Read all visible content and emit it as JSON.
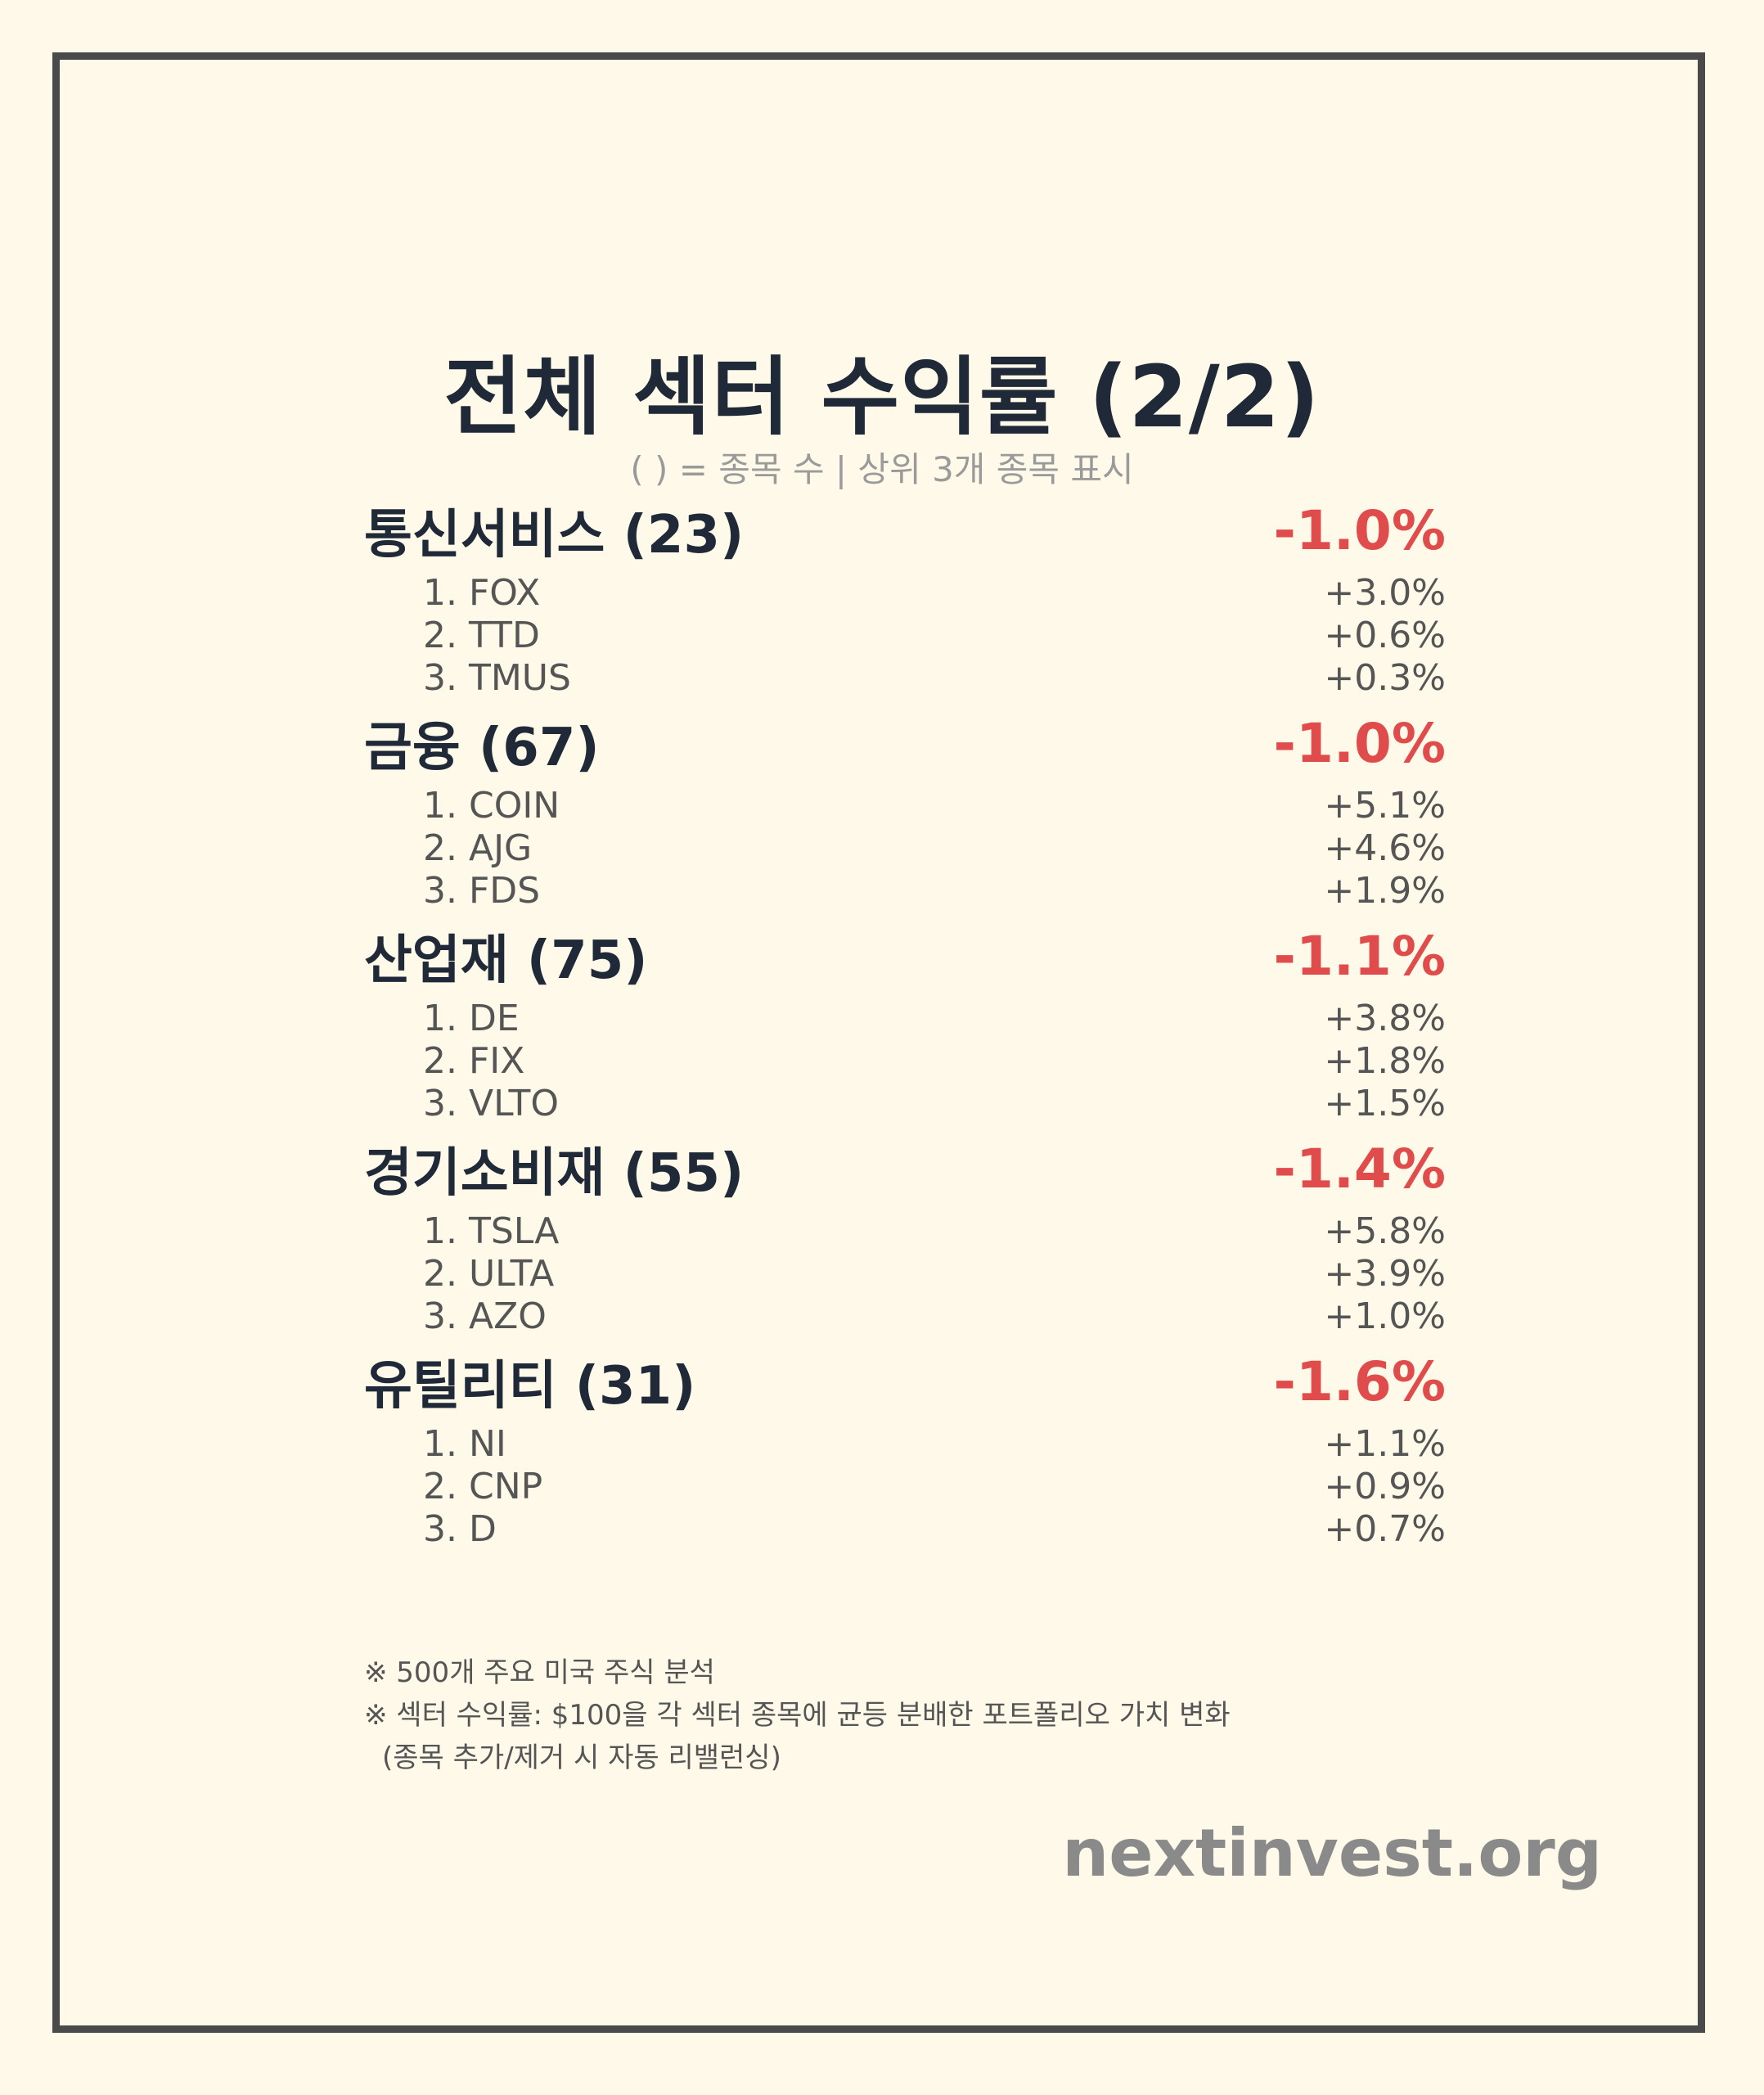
{
  "title": "전체 섹터 수익률 (2/2)",
  "subtitle": "( ) = 종목 수 | 상위 3개 종목 표시",
  "sectors": [
    {
      "name": "통신서비스 (23)",
      "return": "-1.0%",
      "stocks": [
        {
          "label": "1. FOX",
          "return": "+3.0%"
        },
        {
          "label": "2. TTD",
          "return": "+0.6%"
        },
        {
          "label": "3. TMUS",
          "return": "+0.3%"
        }
      ]
    },
    {
      "name": "금융 (67)",
      "return": "-1.0%",
      "stocks": [
        {
          "label": "1. COIN",
          "return": "+5.1%"
        },
        {
          "label": "2. AJG",
          "return": "+4.6%"
        },
        {
          "label": "3. FDS",
          "return": "+1.9%"
        }
      ]
    },
    {
      "name": "산업재 (75)",
      "return": "-1.1%",
      "stocks": [
        {
          "label": "1. DE",
          "return": "+3.8%"
        },
        {
          "label": "2. FIX",
          "return": "+1.8%"
        },
        {
          "label": "3. VLTO",
          "return": "+1.5%"
        }
      ]
    },
    {
      "name": "경기소비재 (55)",
      "return": "-1.4%",
      "stocks": [
        {
          "label": "1. TSLA",
          "return": "+5.8%"
        },
        {
          "label": "2. ULTA",
          "return": "+3.9%"
        },
        {
          "label": "3. AZO",
          "return": "+1.0%"
        }
      ]
    },
    {
      "name": "유틸리티 (31)",
      "return": "-1.6%",
      "stocks": [
        {
          "label": "1. NI",
          "return": "+1.1%"
        },
        {
          "label": "2. CNP",
          "return": "+0.9%"
        },
        {
          "label": "3. D",
          "return": "+0.7%"
        }
      ]
    }
  ],
  "notes": {
    "line1": "※ 500개 주요 미국 주식 분석",
    "line2": "※ 섹터 수익률: $100을 각 섹터 종목에 균등 분배한 포트폴리오 가치 변화",
    "line3": "(종목 추가/제거 시 자동 리밸런싱)"
  },
  "brand": "nextinvest.org",
  "colors": {
    "background": "#fef9e8",
    "border": "#4a4a4a",
    "negative": "#e04b4b",
    "heading": "#1f2937",
    "muted": "#9a9a9a"
  }
}
